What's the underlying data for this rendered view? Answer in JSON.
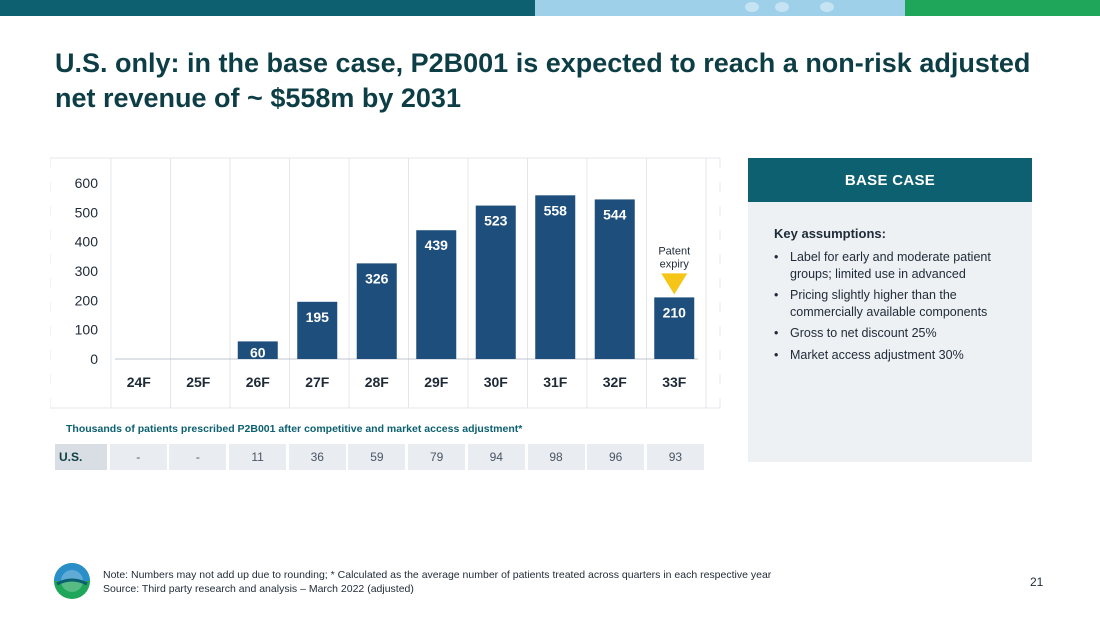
{
  "title": "U.S. only: in the base case, P2B001 is expected to reach a non-risk adjusted net revenue of ~ $558m by 2031",
  "colors": {
    "bar": "#1e4e7c",
    "accent": "#0c6070",
    "arrow": "#f5c518"
  },
  "chart_data": {
    "type": "bar",
    "categories": [
      "24F",
      "25F",
      "26F",
      "27F",
      "28F",
      "29F",
      "30F",
      "31F",
      "32F",
      "33F"
    ],
    "values": [
      0,
      0,
      60,
      195,
      326,
      439,
      523,
      558,
      544,
      210
    ],
    "value_labels": [
      "",
      "",
      "60",
      "195",
      "326",
      "439",
      "523",
      "558",
      "544",
      "210"
    ],
    "yticks": [
      "0",
      "100",
      "200",
      "300",
      "400",
      "500",
      "600"
    ],
    "ylim": [
      0,
      600
    ],
    "annotation": {
      "category": "33F",
      "text_line1": "Patent",
      "text_line2": "expiry",
      "icon": "down-arrow-icon"
    }
  },
  "table": {
    "note": "Thousands of patients prescribed P2B001 after competitive and market access adjustment*",
    "row_label": "U.S.",
    "values": [
      "-",
      "-",
      "11",
      "36",
      "59",
      "79",
      "94",
      "98",
      "96",
      "93"
    ]
  },
  "base_case": {
    "header": "BASE CASE",
    "key_title": "Key assumptions:",
    "bullet": "•",
    "items": [
      "Label for early and moderate patient groups; limited use in advanced",
      "Pricing slightly higher than the commercially available components",
      "Gross to net discount 25%",
      "Market access adjustment 30%"
    ]
  },
  "footer": {
    "note": "Note: Numbers may not add up due to rounding; * Calculated as the average number of patients treated across quarters in each respective year",
    "source": "Source: Third party research and analysis – March 2022 (adjusted)",
    "page": "21"
  }
}
